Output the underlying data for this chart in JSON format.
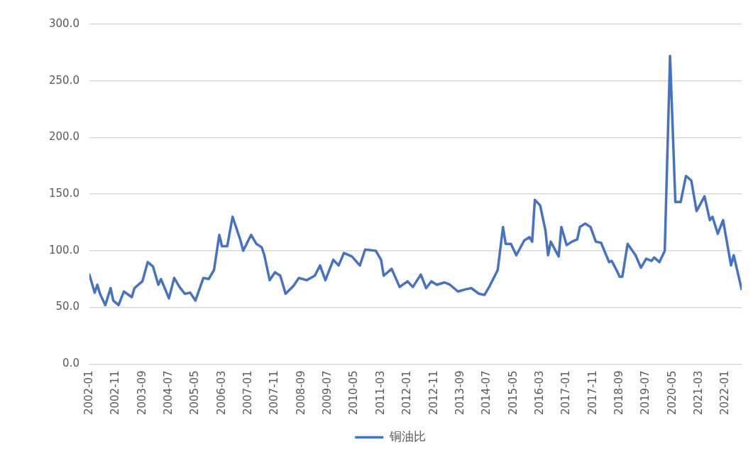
{
  "chart_data": {
    "type": "line",
    "x": [
      "2002-01",
      "2002-03",
      "2002-04",
      "2002-05",
      "2002-07",
      "2002-09",
      "2002-10",
      "2002-12",
      "2003-02",
      "2003-05",
      "2003-06",
      "2003-09",
      "2003-11",
      "2004-01",
      "2004-03",
      "2004-04",
      "2004-07",
      "2004-09",
      "2004-11",
      "2005-01",
      "2005-03",
      "2005-05",
      "2005-08",
      "2005-10",
      "2005-12",
      "2006-02",
      "2006-03",
      "2006-05",
      "2006-07",
      "2006-10",
      "2006-11",
      "2007-02",
      "2007-04",
      "2007-06",
      "2007-07",
      "2007-09",
      "2007-11",
      "2008-01",
      "2008-03",
      "2008-06",
      "2008-08",
      "2008-11",
      "2009-02",
      "2009-04",
      "2009-06",
      "2009-09",
      "2009-11",
      "2010-01",
      "2010-04",
      "2010-07",
      "2010-09",
      "2011-01",
      "2011-03",
      "2011-04",
      "2011-07",
      "2011-10",
      "2012-01",
      "2012-03",
      "2012-06",
      "2012-08",
      "2012-10",
      "2012-12",
      "2013-03",
      "2013-05",
      "2013-08",
      "2013-11",
      "2014-01",
      "2014-04",
      "2014-06",
      "2014-08",
      "2014-11",
      "2015-01",
      "2015-02",
      "2015-04",
      "2015-06",
      "2015-09",
      "2015-11",
      "2015-12",
      "2016-01",
      "2016-03",
      "2016-05",
      "2016-06",
      "2016-07",
      "2016-10",
      "2016-11",
      "2017-01",
      "2017-03",
      "2017-05",
      "2017-06",
      "2017-08",
      "2017-10",
      "2017-12",
      "2018-02",
      "2018-05",
      "2018-06",
      "2018-08",
      "2018-09",
      "2018-10",
      "2018-12",
      "2019-03",
      "2019-05",
      "2019-07",
      "2019-09",
      "2019-10",
      "2019-12",
      "2020-02",
      "2020-04",
      "2020-06",
      "2020-08",
      "2020-10",
      "2020-12",
      "2021-02",
      "2021-05",
      "2021-07",
      "2021-08",
      "2021-10",
      "2021-12",
      "2022-03",
      "2022-04",
      "2022-07"
    ],
    "series": [
      {
        "name": "铜油比",
        "color": "#4472c4",
        "values": [
          79,
          63,
          70,
          62,
          52,
          67,
          56,
          52,
          64,
          59,
          67,
          73,
          90,
          86,
          70,
          75,
          58,
          76,
          68,
          62,
          63,
          56,
          76,
          75,
          83,
          114,
          104,
          104,
          130,
          109,
          100,
          114,
          106,
          103,
          96,
          74,
          81,
          78,
          62,
          69,
          76,
          74,
          78,
          87,
          74,
          92,
          87,
          98,
          95,
          87,
          101,
          100,
          92,
          78,
          84,
          68,
          73,
          68,
          79,
          67,
          73,
          70,
          72,
          70,
          64,
          66,
          67,
          62,
          61,
          69,
          83,
          121,
          106,
          106,
          96,
          109,
          112,
          108,
          145,
          140,
          118,
          96,
          108,
          95,
          121,
          105,
          108,
          110,
          121,
          124,
          121,
          108,
          107,
          90,
          91,
          82,
          77,
          77,
          106,
          96,
          85,
          93,
          91,
          94,
          90,
          100,
          272,
          143,
          143,
          166,
          162,
          135,
          148,
          127,
          130,
          115,
          127,
          87,
          96,
          66
        ]
      }
    ],
    "xlim": [
      "2002-01",
      "2022-07"
    ],
    "xticks": [
      "2002-01",
      "2002-11",
      "2003-09",
      "2004-07",
      "2005-05",
      "2006-03",
      "2007-01",
      "2007-11",
      "2008-09",
      "2009-07",
      "2010-05",
      "2011-03",
      "2012-01",
      "2012-11",
      "2013-09",
      "2014-07",
      "2015-05",
      "2016-03",
      "2017-01",
      "2017-11",
      "2018-09",
      "2019-07",
      "2020-05",
      "2021-03",
      "2022-01"
    ],
    "ylim": [
      0,
      300
    ],
    "yticks": [
      {
        "value": 0,
        "label": "0.0"
      },
      {
        "value": 50,
        "label": "50.0"
      },
      {
        "value": 100,
        "label": "100.0"
      },
      {
        "value": 150,
        "label": "150.0"
      },
      {
        "value": 200,
        "label": "200.0"
      },
      {
        "value": 250,
        "label": "250.0"
      },
      {
        "value": 300,
        "label": "300.0"
      }
    ],
    "grid": "y",
    "legend": "bottom",
    "marker": "none",
    "line_style": "solid"
  }
}
